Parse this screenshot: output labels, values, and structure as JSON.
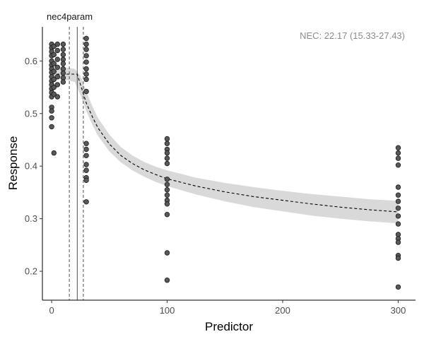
{
  "chart_data": {
    "type": "scatter",
    "facet_title": "nec4param",
    "annotation": "NEC: 22.17 (15.33-27.43)",
    "xlabel": "Predictor",
    "ylabel": "Response",
    "xlim": [
      -8,
      315
    ],
    "ylim": [
      0.145,
      0.665
    ],
    "x_ticks": [
      0,
      100,
      200,
      300
    ],
    "x_tick_labels": [
      "0",
      "100",
      "200",
      "300"
    ],
    "y_ticks": [
      0.2,
      0.3,
      0.4,
      0.5,
      0.6
    ],
    "y_tick_labels": [
      "0.2",
      "0.3",
      "0.4",
      "0.5",
      "0.6"
    ],
    "grid": false,
    "nec": {
      "estimate": 22.17,
      "lower": 15.33,
      "upper": 27.43
    },
    "fitted_curve": {
      "x": [
        0,
        10,
        20,
        22.17,
        25,
        30,
        35,
        40,
        50,
        60,
        70,
        80,
        90,
        100,
        125,
        150,
        175,
        200,
        225,
        250,
        275,
        300
      ],
      "y": [
        0.575,
        0.575,
        0.575,
        0.575,
        0.555,
        0.52,
        0.495,
        0.473,
        0.442,
        0.42,
        0.405,
        0.393,
        0.384,
        0.376,
        0.362,
        0.351,
        0.342,
        0.335,
        0.328,
        0.322,
        0.317,
        0.313
      ]
    },
    "credible_band": {
      "x": [
        0,
        10,
        20,
        25,
        30,
        35,
        40,
        50,
        60,
        70,
        80,
        90,
        100,
        125,
        150,
        175,
        200,
        225,
        250,
        275,
        300
      ],
      "lower": [
        0.565,
        0.565,
        0.56,
        0.535,
        0.505,
        0.48,
        0.458,
        0.428,
        0.407,
        0.392,
        0.38,
        0.37,
        0.362,
        0.346,
        0.333,
        0.322,
        0.314,
        0.306,
        0.3,
        0.295,
        0.291
      ],
      "upper": [
        0.588,
        0.588,
        0.585,
        0.572,
        0.542,
        0.515,
        0.492,
        0.46,
        0.436,
        0.42,
        0.408,
        0.399,
        0.392,
        0.378,
        0.368,
        0.36,
        0.353,
        0.347,
        0.342,
        0.337,
        0.334
      ]
    },
    "points": [
      {
        "x": 0,
        "y": 0.632
      },
      {
        "x": 0,
        "y": 0.625
      },
      {
        "x": 0,
        "y": 0.618
      },
      {
        "x": 0,
        "y": 0.61
      },
      {
        "x": 0,
        "y": 0.6
      },
      {
        "x": 0,
        "y": 0.592
      },
      {
        "x": 0,
        "y": 0.585
      },
      {
        "x": 0,
        "y": 0.578
      },
      {
        "x": 0,
        "y": 0.57
      },
      {
        "x": 0,
        "y": 0.562
      },
      {
        "x": 0,
        "y": 0.555
      },
      {
        "x": 0,
        "y": 0.547
      },
      {
        "x": 0,
        "y": 0.54
      },
      {
        "x": 0,
        "y": 0.532
      },
      {
        "x": 0,
        "y": 0.512
      },
      {
        "x": 0,
        "y": 0.505
      },
      {
        "x": 0,
        "y": 0.492
      },
      {
        "x": 0,
        "y": 0.475
      },
      {
        "x": 2,
        "y": 0.628
      },
      {
        "x": 2,
        "y": 0.612
      },
      {
        "x": 2,
        "y": 0.595
      },
      {
        "x": 2,
        "y": 0.58
      },
      {
        "x": 2,
        "y": 0.565
      },
      {
        "x": 2,
        "y": 0.55
      },
      {
        "x": 2,
        "y": 0.537
      },
      {
        "x": 2,
        "y": 0.425
      },
      {
        "x": 5,
        "y": 0.632
      },
      {
        "x": 5,
        "y": 0.62
      },
      {
        "x": 5,
        "y": 0.603
      },
      {
        "x": 5,
        "y": 0.588
      },
      {
        "x": 5,
        "y": 0.57
      },
      {
        "x": 5,
        "y": 0.555
      },
      {
        "x": 5,
        "y": 0.532
      },
      {
        "x": 10,
        "y": 0.632
      },
      {
        "x": 10,
        "y": 0.622
      },
      {
        "x": 10,
        "y": 0.612
      },
      {
        "x": 10,
        "y": 0.603
      },
      {
        "x": 10,
        "y": 0.595
      },
      {
        "x": 10,
        "y": 0.585
      },
      {
        "x": 10,
        "y": 0.577
      },
      {
        "x": 10,
        "y": 0.568
      },
      {
        "x": 10,
        "y": 0.56
      },
      {
        "x": 30,
        "y": 0.643
      },
      {
        "x": 30,
        "y": 0.632
      },
      {
        "x": 30,
        "y": 0.622
      },
      {
        "x": 30,
        "y": 0.61
      },
      {
        "x": 30,
        "y": 0.598
      },
      {
        "x": 30,
        "y": 0.585
      },
      {
        "x": 30,
        "y": 0.575
      },
      {
        "x": 30,
        "y": 0.565
      },
      {
        "x": 30,
        "y": 0.542
      },
      {
        "x": 30,
        "y": 0.443
      },
      {
        "x": 30,
        "y": 0.432
      },
      {
        "x": 30,
        "y": 0.42
      },
      {
        "x": 30,
        "y": 0.403
      },
      {
        "x": 30,
        "y": 0.392
      },
      {
        "x": 30,
        "y": 0.378
      },
      {
        "x": 30,
        "y": 0.373
      },
      {
        "x": 30,
        "y": 0.332
      },
      {
        "x": 100,
        "y": 0.452
      },
      {
        "x": 100,
        "y": 0.443
      },
      {
        "x": 100,
        "y": 0.432
      },
      {
        "x": 100,
        "y": 0.425
      },
      {
        "x": 100,
        "y": 0.415
      },
      {
        "x": 100,
        "y": 0.405
      },
      {
        "x": 100,
        "y": 0.375
      },
      {
        "x": 100,
        "y": 0.365
      },
      {
        "x": 100,
        "y": 0.355
      },
      {
        "x": 100,
        "y": 0.345
      },
      {
        "x": 100,
        "y": 0.335
      },
      {
        "x": 100,
        "y": 0.328
      },
      {
        "x": 100,
        "y": 0.308
      },
      {
        "x": 100,
        "y": 0.235
      },
      {
        "x": 100,
        "y": 0.183
      },
      {
        "x": 300,
        "y": 0.435
      },
      {
        "x": 300,
        "y": 0.425
      },
      {
        "x": 300,
        "y": 0.415
      },
      {
        "x": 300,
        "y": 0.402
      },
      {
        "x": 300,
        "y": 0.36
      },
      {
        "x": 300,
        "y": 0.345
      },
      {
        "x": 300,
        "y": 0.333
      },
      {
        "x": 300,
        "y": 0.32
      },
      {
        "x": 300,
        "y": 0.305
      },
      {
        "x": 300,
        "y": 0.29
      },
      {
        "x": 300,
        "y": 0.27
      },
      {
        "x": 300,
        "y": 0.262
      },
      {
        "x": 300,
        "y": 0.255
      },
      {
        "x": 300,
        "y": 0.23
      },
      {
        "x": 300,
        "y": 0.225
      },
      {
        "x": 300,
        "y": 0.17
      }
    ],
    "colors": {
      "point_fill": "#595959",
      "point_stroke": "#1a1a1a",
      "band": "#d9d9d9",
      "curve": "#000000",
      "nec_line": "#4d4d4d",
      "axis": "#000000"
    }
  }
}
